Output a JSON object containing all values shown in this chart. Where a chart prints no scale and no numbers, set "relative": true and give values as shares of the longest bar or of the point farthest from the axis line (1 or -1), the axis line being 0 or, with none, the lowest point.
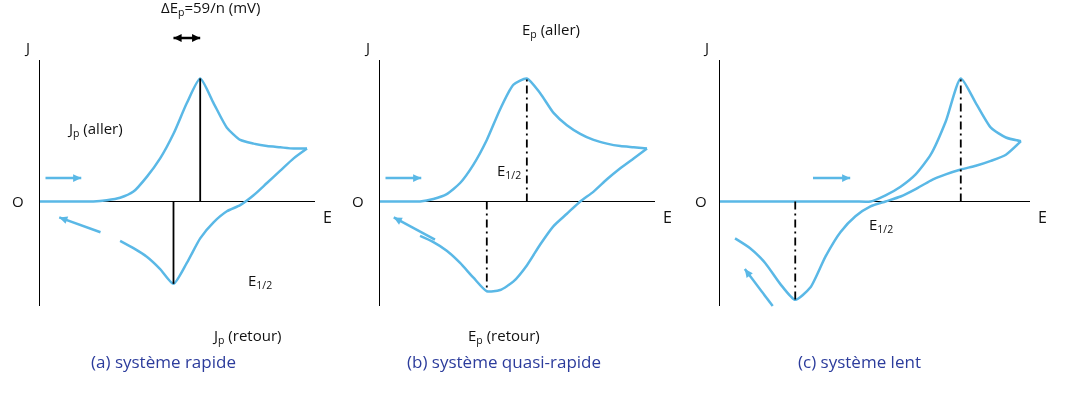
{
  "chart_data": [
    {
      "type": "line",
      "title": "(a) système rapide",
      "xlabel": "E",
      "ylabel": "J",
      "relative": true,
      "marker": "none",
      "line_style": "solid",
      "categories": [
        null,
        null,
        null,
        null,
        null,
        null,
        null,
        null,
        null,
        null,
        null,
        null,
        null,
        null,
        null,
        null,
        null,
        null,
        null,
        null,
        null
      ],
      "series": [
        {
          "color": "#5ab8e6",
          "values": [
            0,
            0,
            0,
            0,
            0,
            0.01,
            0.03,
            0.08,
            0.2,
            0.35,
            0.55,
            0.8,
            1,
            0.8,
            0.6,
            0.5,
            0.47,
            0.45,
            0.44,
            0.43,
            0.43
          ]
        },
        {
          "color": "#5ab8e6",
          "values": [
            null,
            null,
            null,
            null,
            null,
            null,
            -0.32,
            -0.38,
            -0.45,
            -0.55,
            -0.67,
            -0.5,
            -0.3,
            -0.17,
            -0.08,
            -0.03,
            0.05,
            0.15,
            0.25,
            0.35,
            0.43
          ]
        }
      ],
      "annotations": [
        "ΔE$_{p}$=59/n (mV)",
        "J$_{p}$ (aller)",
        "E$_{1/2}$",
        "J$_{p}$ (retour)",
        "O"
      ]
    },
    {
      "type": "line",
      "title": "(b) système quasi-rapide",
      "xlabel": "E",
      "ylabel": "J",
      "relative": true,
      "marker": "none",
      "line_style": "solid",
      "categories": [
        null,
        null,
        null,
        null,
        null,
        null,
        null,
        null,
        null,
        null,
        null,
        null,
        null,
        null,
        null,
        null,
        null,
        null,
        null,
        null,
        null
      ],
      "series": [
        {
          "color": "#5ab8e6",
          "values": [
            0,
            0,
            0,
            0,
            0.02,
            0.06,
            0.15,
            0.3,
            0.5,
            0.75,
            0.95,
            1,
            0.88,
            0.72,
            0.62,
            0.55,
            0.5,
            0.47,
            0.45,
            0.44,
            0.43
          ]
        },
        {
          "color": "#5ab8e6",
          "values": [
            null,
            null,
            null,
            -0.28,
            -0.33,
            -0.4,
            -0.5,
            -0.62,
            -0.73,
            -0.72,
            -0.65,
            -0.52,
            -0.35,
            -0.2,
            -0.1,
            0,
            0.08,
            0.18,
            0.27,
            0.35,
            0.43
          ]
        }
      ],
      "annotations": [
        "E$_{p}$ (aller)",
        "E$_{1/2}$",
        "E$_{p}$ (retour)",
        "O"
      ]
    },
    {
      "type": "line",
      "title": "(c) système lent",
      "xlabel": "E",
      "ylabel": "J",
      "relative": true,
      "marker": "none",
      "line_style": "solid",
      "categories": [
        null,
        null,
        null,
        null,
        null,
        null,
        null,
        null,
        null,
        null,
        null,
        null,
        null,
        null,
        null,
        null,
        null,
        null,
        null,
        null,
        null
      ],
      "series": [
        {
          "color": "#5ab8e6",
          "values": [
            0,
            0,
            0,
            0,
            0,
            0,
            0,
            0,
            0,
            0,
            0,
            0.05,
            0.12,
            0.22,
            0.38,
            0.65,
            1,
            0.8,
            0.6,
            0.52,
            0.49
          ]
        },
        {
          "color": "#5ab8e6",
          "values": [
            null,
            -0.3,
            -0.38,
            -0.5,
            -0.67,
            -0.8,
            -0.7,
            -0.45,
            -0.25,
            -0.12,
            -0.04,
            0,
            0.04,
            0.1,
            0.17,
            0.22,
            0.26,
            0.29,
            0.33,
            0.38,
            0.49
          ]
        }
      ],
      "annotations": [
        "E$_{1/2}$",
        "O"
      ]
    }
  ]
}
